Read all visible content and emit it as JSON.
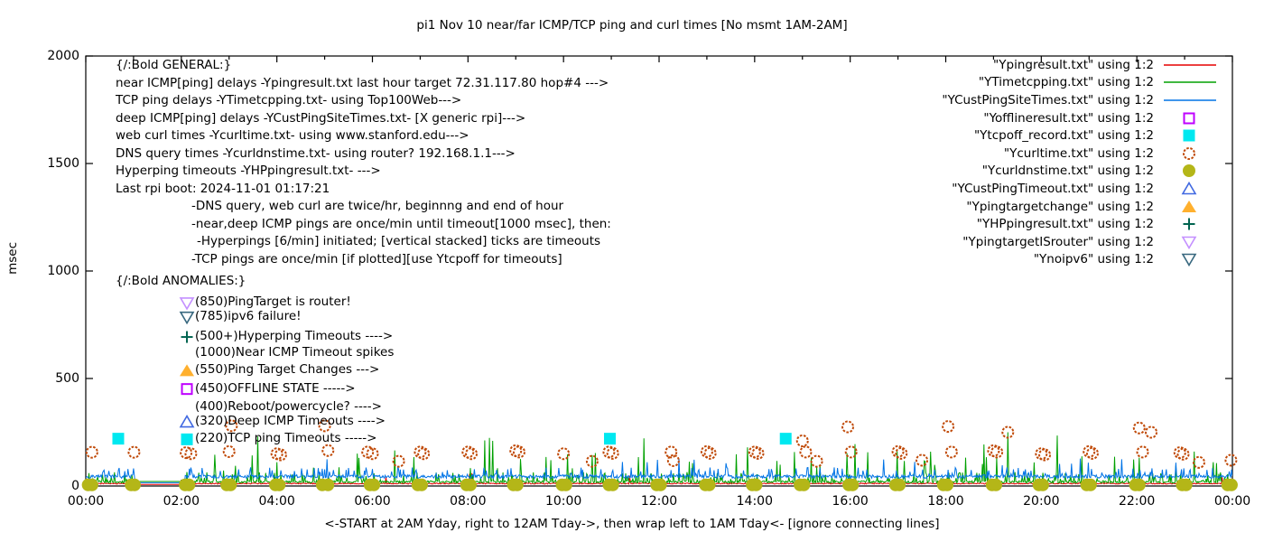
{
  "title": "pi1 Nov 10  near/far ICMP/TCP ping and curl times [No msmt 1AM-2AM]",
  "axes": {
    "ylabel": "msec",
    "y_ticks": [
      0,
      500,
      1000,
      1500,
      2000
    ],
    "x_ticks": [
      "00:00",
      "02:00",
      "04:00",
      "06:00",
      "08:00",
      "10:00",
      "12:00",
      "14:00",
      "16:00",
      "18:00",
      "20:00",
      "22:00",
      "00:00"
    ],
    "x_caption": "<-START at 2AM Yday, right to 12AM Tday->, then wrap left to 1AM Tday<- [ignore connecting lines]"
  },
  "legend": {
    "items": [
      {
        "label": "\"Ypingresult.txt\" using 1:2",
        "marker": "line",
        "color": "#e60000"
      },
      {
        "label": "\"YTimetcpping.txt\" using 1:2",
        "marker": "line",
        "color": "#00a000"
      },
      {
        "label": "\"YCustPingSiteTimes.txt\" using 1:2",
        "marker": "line",
        "color": "#0073e6"
      },
      {
        "label": "\"Yofflineresult.txt\" using 1:2",
        "marker": "square-open",
        "color": "#bf00ff"
      },
      {
        "label": "\"Ytcpoff_record.txt\" using 1:2",
        "marker": "square-filled",
        "color": "#00e8f0"
      },
      {
        "label": "\"Ycurltime.txt\" using 1:2",
        "marker": "circle-open",
        "color": "#c04a08"
      },
      {
        "label": "\"Ycurldnstime.txt\" using 1:2",
        "marker": "circle-filled",
        "color": "#b4b618"
      },
      {
        "label": "\"YCustPingTimeout.txt\" using 1:2",
        "marker": "triangle-up-open",
        "color": "#4169e1"
      },
      {
        "label": "\"Ypingtargetchange\" using 1:2",
        "marker": "triangle-up-filled",
        "color": "#ffb02e"
      },
      {
        "label": "\"YHPpingresult.txt\" using 1:2",
        "marker": "plus",
        "color": "#016450"
      },
      {
        "label": "\"YpingtargetISrouter\" using 1:2",
        "marker": "triangle-down-open",
        "color": "#c490ff"
      },
      {
        "label": "\"Ynoipv6\" using 1:2",
        "marker": "triangle-down-open",
        "color": "#38687f"
      }
    ]
  },
  "notes_general": {
    "heading": "{/:Bold GENERAL:}",
    "lines": [
      {
        "text": "near ICMP[ping] delays -Ypingresult.txt last hour target 72.31.117.80 hop#4 --->",
        "indent": 0
      },
      {
        "text": "TCP ping delays -YTimetcpping.txt- using Top100Web--->",
        "indent": 0
      },
      {
        "text": "deep ICMP[ping] delays -YCustPingSiteTimes.txt- [X generic rpi]--->",
        "indent": 0
      },
      {
        "text": "web curl times -Ycurltime.txt- using www.stanford.edu--->",
        "indent": 0
      },
      {
        "text": "DNS query times -Ycurldnstime.txt- using router? 192.168.1.1--->",
        "indent": 0
      },
      {
        "text": "Hyperping timeouts -YHPpingresult.txt- --->",
        "indent": 0
      },
      {
        "text": "Last rpi boot: 2024-11-01 01:17:21",
        "indent": 0
      },
      {
        "text": "-DNS query, web curl are twice/hr, beginnng and end of hour",
        "indent": 84
      },
      {
        "text": "-near,deep ICMP pings are once/min until timeout[1000 msec], then:",
        "indent": 84
      },
      {
        "text": "-Hyperpings [6/min] initiated; [vertical stacked] ticks are timeouts",
        "indent": 90
      },
      {
        "text": "-TCP pings are once/min [if plotted][use Ytcpoff for timeouts]",
        "indent": 84
      }
    ]
  },
  "notes_anomalies": {
    "heading": "{/:Bold ANOMALIES:}",
    "heading_y_msec": 950,
    "marker_x_hour": 2.117,
    "rows": [
      {
        "marker": "triangle-down-open",
        "color": "#c490ff",
        "label": "(850)PingTarget is router!",
        "y_msec": 851
      },
      {
        "marker": "triangle-down-open",
        "color": "#38687f",
        "label": "(785)ipv6 failure!",
        "y_msec": 785
      },
      {
        "marker": "plus",
        "color": "#016450",
        "label": "(500+)Hyperping Timeouts ---->",
        "y_msec": 693
      },
      {
        "marker": null,
        "color": null,
        "label": "(1000)Near ICMP Timeout spikes",
        "y_msec": 617
      },
      {
        "marker": "triangle-up-filled",
        "color": "#ffb02e",
        "label": "(550)Ping Target Changes --->",
        "y_msec": 536
      },
      {
        "marker": "square-open",
        "color": "#bf00ff",
        "label": "(450)OFFLINE STATE ----->",
        "y_msec": 451
      },
      {
        "marker": null,
        "color": null,
        "label": "(400)Reboot/powercycle? ---->",
        "y_msec": 366
      },
      {
        "marker": "triangle-up-open",
        "color": "#4169e1",
        "label": "(320)Deep ICMP Timeouts ---->",
        "y_msec": 298
      },
      {
        "marker": "square-filled",
        "color": "#00e8f0",
        "label": "(220)TCP ping Timeouts ----->",
        "y_msec": 217
      }
    ]
  },
  "chart_data": {
    "type": "line",
    "title": "pi1 Nov 10  near/far ICMP/TCP ping and curl times [No msmt 1AM-2AM]",
    "xlabel": "<-START at 2AM Yday, right to 12AM Tday->, then wrap left to 1AM Tday<- [ignore connecting lines]",
    "ylabel": "msec",
    "ylim": [
      0,
      2000
    ],
    "x_range_hours": [
      0,
      24
    ],
    "grid": false,
    "legend_position": "top-right",
    "sample_interval_min": 1,
    "gap": {
      "start_hour": 1.03,
      "end_hour": 2.07,
      "note": "No msmt 1AM-2AM; straight connecting lines drawn across gap"
    },
    "series": [
      {
        "name": "Ypingresult.txt",
        "label": "near ICMP ping delay",
        "color": "#e60000",
        "baseline_msec": 9,
        "noise_max_msec": 14,
        "spike_rate_per_min": 0.008,
        "spike_max_msec": 60,
        "gap_value_msec": 7
      },
      {
        "name": "YTimetcpping.txt",
        "label": "TCP ping delay",
        "color": "#00a000",
        "baseline_msec": 14,
        "noise_max_msec": 24,
        "spike_rate_per_min": 0.05,
        "spike_max_msec": 260,
        "gap_value_msec": 21
      },
      {
        "name": "YCustPingSiteTimes.txt",
        "label": "deep ICMP ping delay",
        "color": "#0073e6",
        "baseline_msec": 36,
        "noise_max_msec": 52,
        "spike_rate_per_min": 0.015,
        "spike_max_msec": 130,
        "gap_value_msec": 15
      }
    ],
    "notable_green_spikes_hour_msec": [
      [
        3.6,
        230
      ],
      [
        8.35,
        212
      ],
      [
        13.85,
        180
      ],
      [
        16.1,
        195
      ],
      [
        19.3,
        250
      ],
      [
        23.2,
        160
      ]
    ],
    "scatter_series": [
      {
        "name": "Ycurltime.txt",
        "marker": "circle-open",
        "color": "#c04a08",
        "points": [
          [
            0.13,
            157
          ],
          [
            1.01,
            157
          ],
          [
            2.1,
            155
          ],
          [
            2.2,
            150
          ],
          [
            3.0,
            160
          ],
          [
            3.05,
            280
          ],
          [
            4.0,
            150
          ],
          [
            4.08,
            145
          ],
          [
            5.0,
            280
          ],
          [
            5.07,
            165
          ],
          [
            5.9,
            158
          ],
          [
            6.0,
            150
          ],
          [
            6.55,
            115
          ],
          [
            7.0,
            158
          ],
          [
            7.07,
            150
          ],
          [
            8.0,
            158
          ],
          [
            8.07,
            150
          ],
          [
            9.0,
            164
          ],
          [
            9.07,
            158
          ],
          [
            10.0,
            150
          ],
          [
            10.6,
            115
          ],
          [
            10.95,
            158
          ],
          [
            11.03,
            152
          ],
          [
            12.25,
            158
          ],
          [
            12.3,
            118
          ],
          [
            13.0,
            160
          ],
          [
            13.07,
            152
          ],
          [
            14.0,
            158
          ],
          [
            14.07,
            152
          ],
          [
            15.0,
            210
          ],
          [
            15.07,
            158
          ],
          [
            15.3,
            115
          ],
          [
            15.95,
            275
          ],
          [
            16.02,
            158
          ],
          [
            17.0,
            160
          ],
          [
            17.07,
            152
          ],
          [
            17.5,
            120
          ],
          [
            18.05,
            277
          ],
          [
            18.12,
            158
          ],
          [
            19.0,
            164
          ],
          [
            19.07,
            158
          ],
          [
            19.3,
            250
          ],
          [
            20.0,
            150
          ],
          [
            20.07,
            145
          ],
          [
            21.0,
            160
          ],
          [
            21.07,
            152
          ],
          [
            22.05,
            270
          ],
          [
            22.12,
            158
          ],
          [
            22.3,
            250
          ],
          [
            22.9,
            155
          ],
          [
            22.97,
            148
          ],
          [
            23.3,
            110
          ],
          [
            23.97,
            120
          ]
        ]
      },
      {
        "name": "Ycurldnstime.txt",
        "marker": "circle-filled",
        "color": "#b4b618",
        "y_msec": 5,
        "hours": [
          0.05,
          0.13,
          0.95,
          1.02,
          2.08,
          2.16,
          2.95,
          3.03,
          3.97,
          4.05,
          4.95,
          5.07,
          5.95,
          6.03,
          6.95,
          7.03,
          7.97,
          8.05,
          8.95,
          9.03,
          9.97,
          10.05,
          10.95,
          11.03,
          11.95,
          12.03,
          12.97,
          13.05,
          13.95,
          14.03,
          14.95,
          15.03,
          15.97,
          16.05,
          16.95,
          17.03,
          17.95,
          18.03,
          18.97,
          19.05,
          19.95,
          20.03,
          20.95,
          21.03,
          21.97,
          22.05,
          22.95,
          23.03,
          23.9,
          23.98
        ]
      },
      {
        "name": "Ytcpoff_record.txt",
        "marker": "square-filled",
        "color": "#00e8f0",
        "points": [
          [
            0.68,
            220
          ],
          [
            10.97,
            220
          ],
          [
            14.65,
            220
          ]
        ]
      }
    ]
  }
}
